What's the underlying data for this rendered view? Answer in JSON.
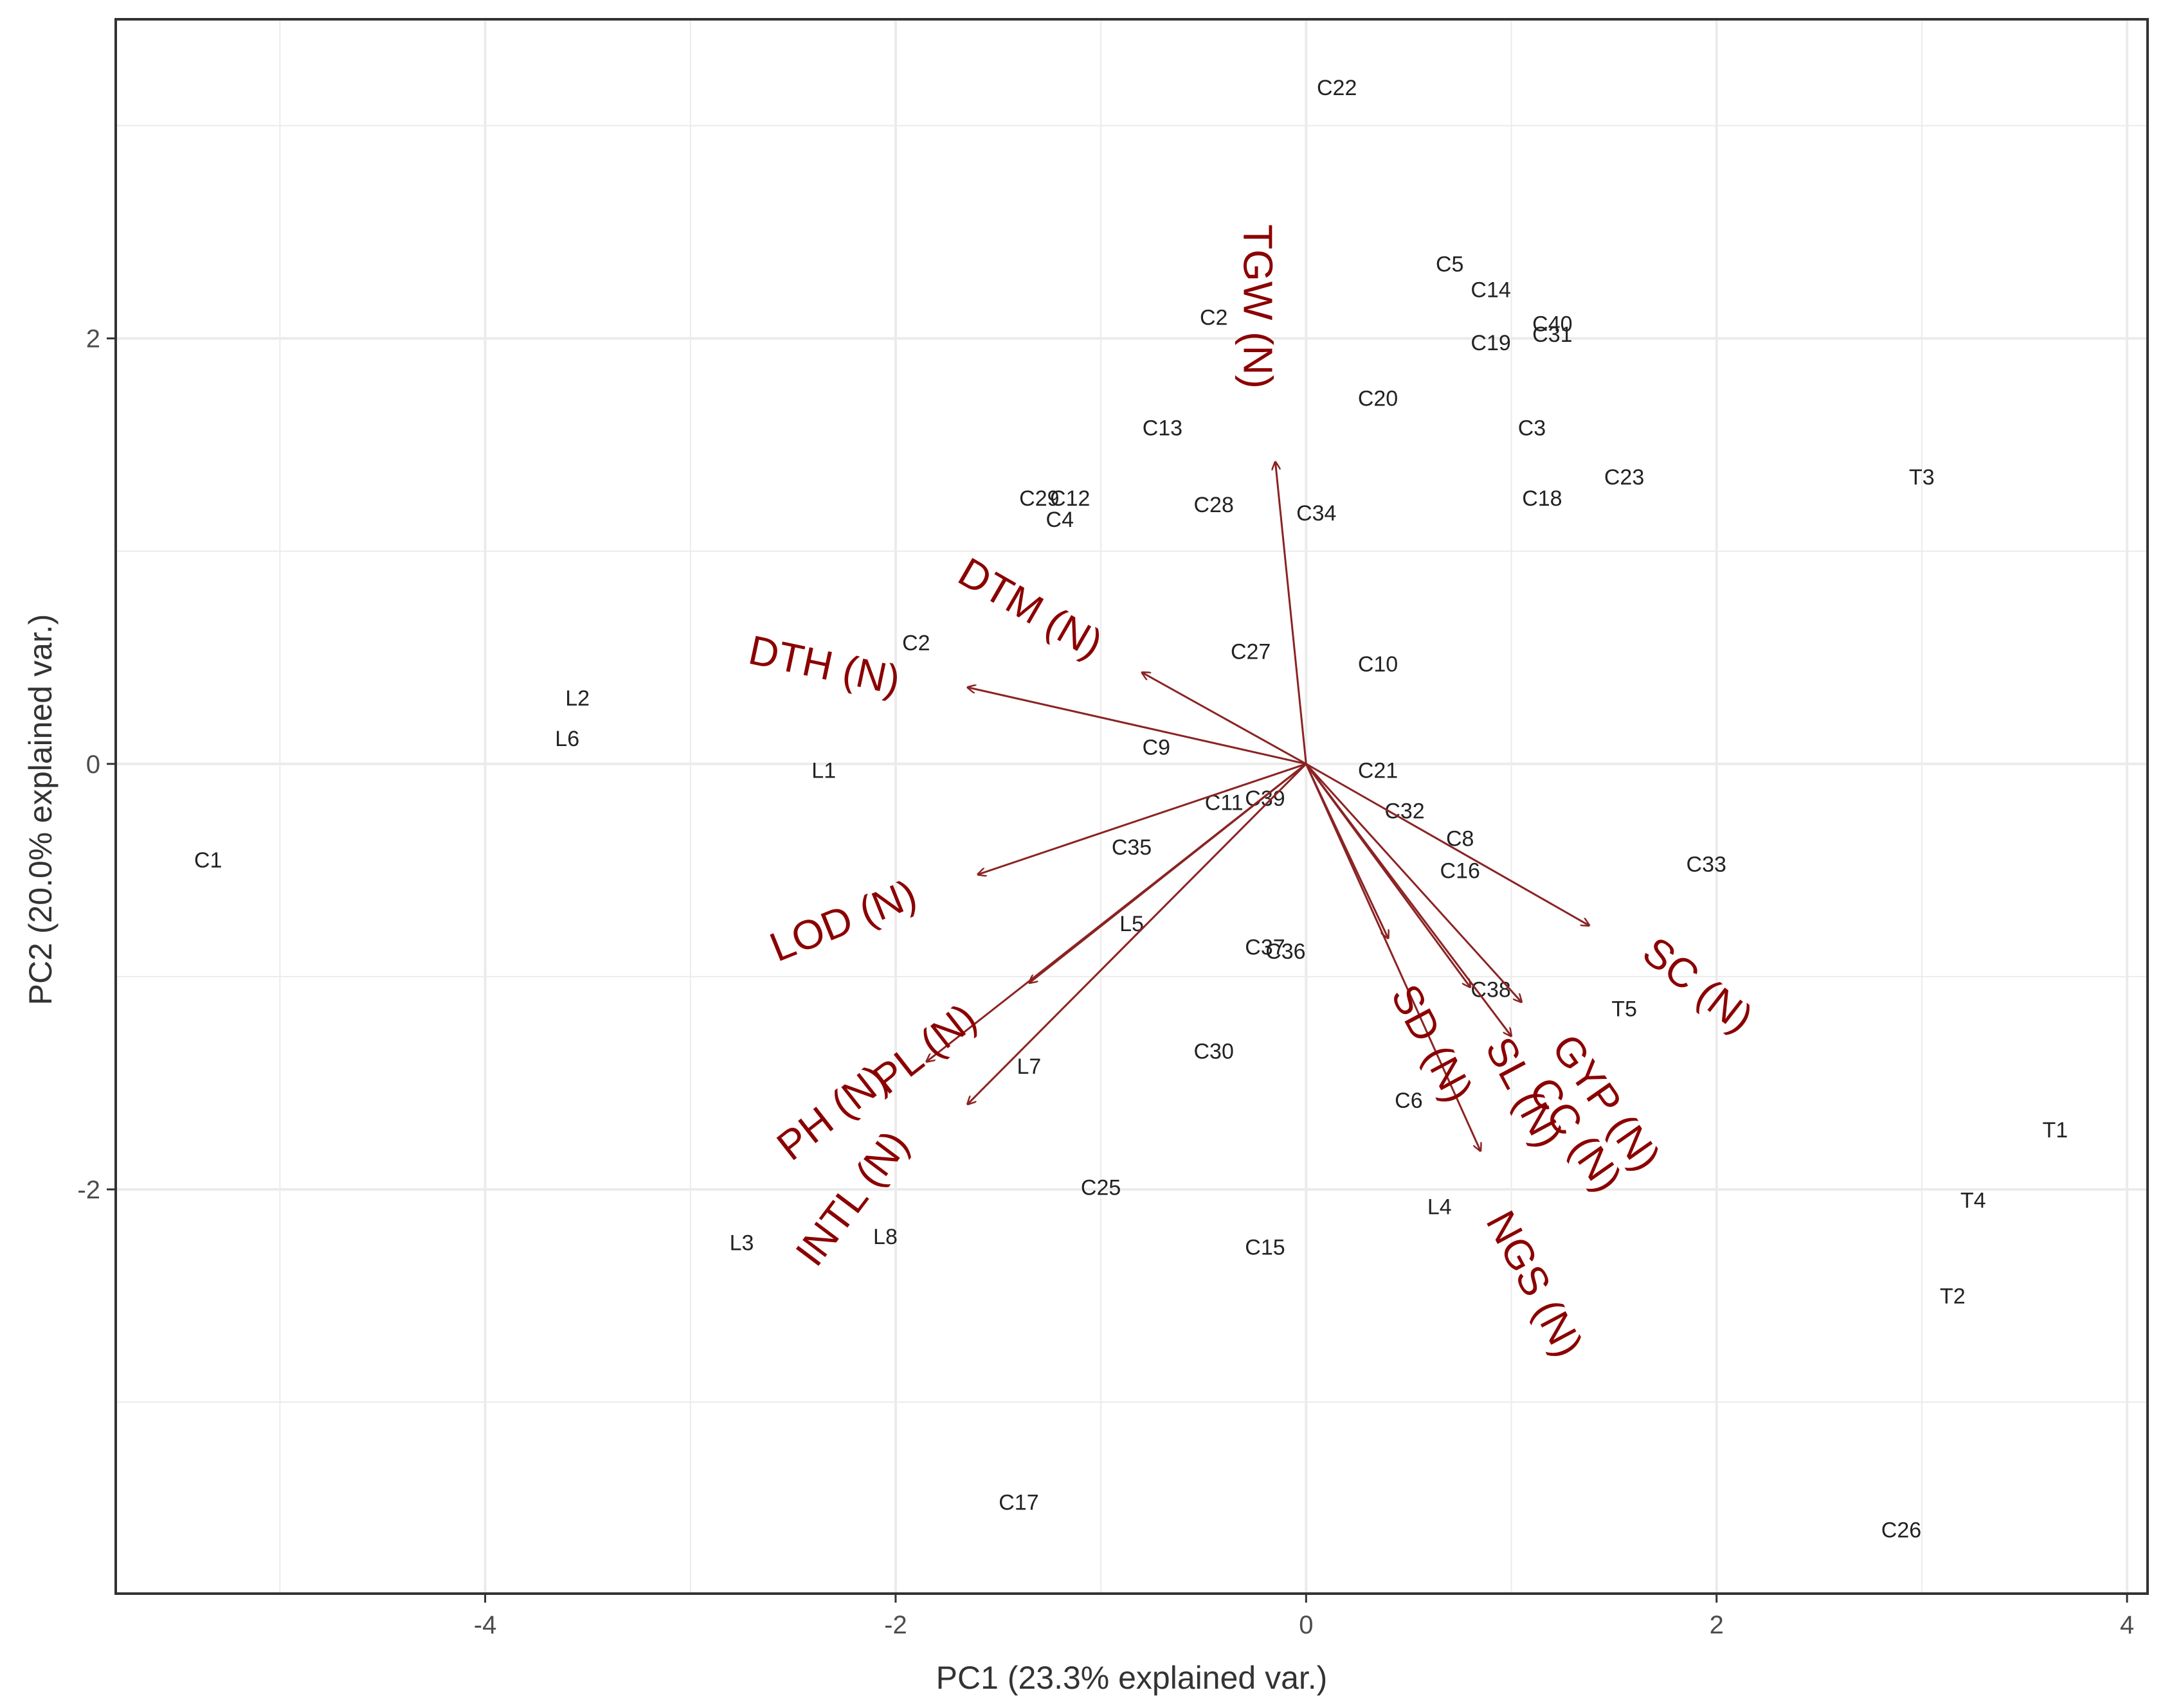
{
  "chart_data": {
    "type": "scatter",
    "subtype": "pca-biplot",
    "xlabel": "PC1 (23.3% explained var.)",
    "ylabel": "PC2 (20.0% explained var.)",
    "xlim": [
      -5.8,
      4.1
    ],
    "ylim": [
      -3.9,
      3.5
    ],
    "xticks": [
      -4,
      -2,
      0,
      2,
      4
    ],
    "xtick_labels": [
      "-4",
      "-2",
      "0",
      "2",
      "4"
    ],
    "yticks": [
      -2,
      0,
      2
    ],
    "ytick_labels": [
      "-2",
      "0",
      "2"
    ],
    "grid": true,
    "colors": {
      "points": "#222222",
      "arrows": "#8b2323",
      "var_labels": "#8b0000",
      "grid": "#ebebeb",
      "panel_border": "#333333"
    },
    "points": [
      {
        "label": "C22",
        "x": 0.15,
        "y": 3.18
      },
      {
        "label": "C5",
        "x": 0.7,
        "y": 2.35
      },
      {
        "label": "C14",
        "x": 0.9,
        "y": 2.23
      },
      {
        "label": "C2",
        "x": -0.45,
        "y": 2.1
      },
      {
        "label": "C40",
        "x": 1.2,
        "y": 2.07
      },
      {
        "label": "C31",
        "x": 1.2,
        "y": 2.02
      },
      {
        "label": "C19",
        "x": 0.9,
        "y": 1.98
      },
      {
        "label": "C20",
        "x": 0.35,
        "y": 1.72
      },
      {
        "label": "C13",
        "x": -0.7,
        "y": 1.58
      },
      {
        "label": "C3",
        "x": 1.1,
        "y": 1.58
      },
      {
        "label": "C23",
        "x": 1.55,
        "y": 1.35
      },
      {
        "label": "T3",
        "x": 3.0,
        "y": 1.35
      },
      {
        "label": "C12",
        "x": -1.15,
        "y": 1.25
      },
      {
        "label": "C29",
        "x": -1.3,
        "y": 1.25
      },
      {
        "label": "C4",
        "x": -1.2,
        "y": 1.15
      },
      {
        "label": "C28",
        "x": -0.45,
        "y": 1.22
      },
      {
        "label": "C18",
        "x": 1.15,
        "y": 1.25
      },
      {
        "label": "C34",
        "x": 0.05,
        "y": 1.18
      },
      {
        "label": "C2",
        "x": -1.9,
        "y": 0.57
      },
      {
        "label": "C27",
        "x": -0.27,
        "y": 0.53
      },
      {
        "label": "C10",
        "x": 0.35,
        "y": 0.47
      },
      {
        "label": "L2",
        "x": -3.55,
        "y": 0.31
      },
      {
        "label": "L6",
        "x": -3.6,
        "y": 0.12
      },
      {
        "label": "C9",
        "x": -0.73,
        "y": 0.08
      },
      {
        "label": "L1",
        "x": -2.35,
        "y": -0.03
      },
      {
        "label": "C21",
        "x": 0.35,
        "y": -0.03
      },
      {
        "label": "C11",
        "x": -0.4,
        "y": -0.18
      },
      {
        "label": "C39",
        "x": -0.2,
        "y": -0.16
      },
      {
        "label": "C32",
        "x": 0.48,
        "y": -0.22
      },
      {
        "label": "C8",
        "x": 0.75,
        "y": -0.35
      },
      {
        "label": "C16",
        "x": 0.75,
        "y": -0.5
      },
      {
        "label": "C35",
        "x": -0.85,
        "y": -0.39
      },
      {
        "label": "C1",
        "x": -5.35,
        "y": -0.45
      },
      {
        "label": "C33",
        "x": 1.95,
        "y": -0.47
      },
      {
        "label": "L5",
        "x": -0.85,
        "y": -0.75
      },
      {
        "label": "C37",
        "x": -0.2,
        "y": -0.86
      },
      {
        "label": "C36",
        "x": -0.1,
        "y": -0.88
      },
      {
        "label": "C38",
        "x": 0.9,
        "y": -1.06
      },
      {
        "label": "T5",
        "x": 1.55,
        "y": -1.15
      },
      {
        "label": "C30",
        "x": -0.45,
        "y": -1.35
      },
      {
        "label": "L7",
        "x": -1.35,
        "y": -1.42
      },
      {
        "label": "C6",
        "x": 0.5,
        "y": -1.58
      },
      {
        "label": "T1",
        "x": 3.65,
        "y": -1.72
      },
      {
        "label": "C25",
        "x": -1.0,
        "y": -1.99
      },
      {
        "label": "T4",
        "x": 3.25,
        "y": -2.05
      },
      {
        "label": "L4",
        "x": 0.65,
        "y": -2.08
      },
      {
        "label": "L3",
        "x": -2.75,
        "y": -2.25
      },
      {
        "label": "L8",
        "x": -2.05,
        "y": -2.22
      },
      {
        "label": "C15",
        "x": -0.2,
        "y": -2.27
      },
      {
        "label": "T2",
        "x": 3.15,
        "y": -2.5
      },
      {
        "label": "C17",
        "x": -1.4,
        "y": -3.47
      },
      {
        "label": "C26",
        "x": 2.9,
        "y": -3.6
      }
    ],
    "loadings": [
      {
        "name": "TGW (N)",
        "x": -0.15,
        "y": 1.42,
        "label_x": -0.25,
        "label_y": 2.15,
        "label_angle": 90
      },
      {
        "name": "DTM (N)",
        "x": -0.8,
        "y": 0.43,
        "label_x": -1.35,
        "label_y": 0.72,
        "label_angle": 30
      },
      {
        "name": "DTH (N)",
        "x": -1.65,
        "y": 0.36,
        "label_x": -2.35,
        "label_y": 0.45,
        "label_angle": 12
      },
      {
        "name": "LOD (N)",
        "x": -1.6,
        "y": -0.52,
        "label_x": -2.25,
        "label_y": -0.75,
        "label_angle": -22
      },
      {
        "name": "PL (N)",
        "x": -1.35,
        "y": -1.03,
        "label_x": -1.85,
        "label_y": -1.35,
        "label_angle": -38
      },
      {
        "name": "PH (N)",
        "x": -1.85,
        "y": -1.4,
        "label_x": -2.3,
        "label_y": -1.65,
        "label_angle": -38
      },
      {
        "name": "INTL (N)",
        "x": -1.65,
        "y": -1.6,
        "label_x": -2.2,
        "label_y": -2.05,
        "label_angle": -53
      },
      {
        "name": "SC (N)",
        "x": 1.38,
        "y": -0.76,
        "label_x": 1.9,
        "label_y": -1.05,
        "label_angle": 38
      },
      {
        "name": "SD (N)",
        "x": 0.4,
        "y": -0.82,
        "label_x": 0.6,
        "label_y": -1.32,
        "label_angle": 62
      },
      {
        "name": "SL (N)",
        "x": 0.8,
        "y": -1.05,
        "label_x": 1.05,
        "label_y": -1.55,
        "label_angle": 62
      },
      {
        "name": "GYP (N)",
        "x": 1.05,
        "y": -1.12,
        "label_x": 1.45,
        "label_y": -1.6,
        "label_angle": 55
      },
      {
        "name": "CC (N)",
        "x": 1.0,
        "y": -1.28,
        "label_x": 1.3,
        "label_y": -1.75,
        "label_angle": 55
      },
      {
        "name": "NGS (N)",
        "x": 0.85,
        "y": -1.82,
        "label_x": 1.1,
        "label_y": -2.45,
        "label_angle": 62
      }
    ]
  }
}
